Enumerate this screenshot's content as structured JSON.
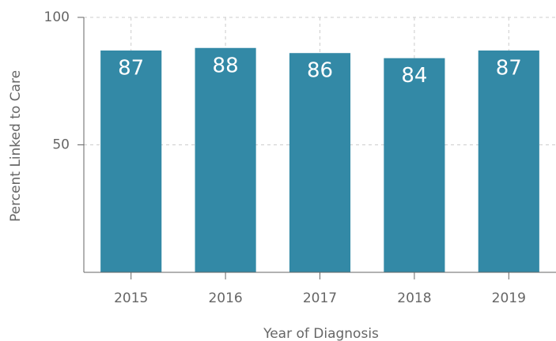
{
  "chart_data": {
    "type": "bar",
    "categories": [
      "2015",
      "2016",
      "2017",
      "2018",
      "2019"
    ],
    "values": [
      87,
      88,
      86,
      84,
      87
    ],
    "color": "#3389a6",
    "ylim": [
      0,
      100
    ],
    "yticks": [
      50,
      100
    ],
    "grid": true,
    "xlabel": "Year of Diagnosis",
    "ylabel": "Percent Linked to Care"
  }
}
